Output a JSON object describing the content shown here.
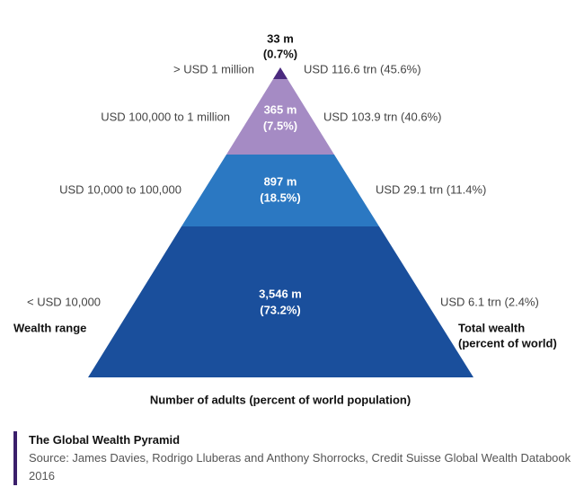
{
  "levels": [
    {
      "adults": "33 m",
      "share": "(0.7%)",
      "range": "> USD 1 million",
      "wealth": "USD 116.6 trn (45.6%)"
    },
    {
      "adults": "365 m",
      "share": "(7.5%)",
      "range": "USD 100,000  to 1 million",
      "wealth": "USD 103.9 trn (40.6%)"
    },
    {
      "adults": "897 m",
      "share": "(18.5%)",
      "range": "USD 10,000  to 100,000",
      "wealth": "USD 29.1 trn (11.4%)"
    },
    {
      "adults": "3,546 m",
      "share": "(73.2%)",
      "range": "<  USD 10,000",
      "wealth": "USD 6.1 trn (2.4%)"
    }
  ],
  "labels": {
    "left": "Wealth range",
    "right": [
      "Total wealth",
      "(percent of world)"
    ],
    "bottom": "Number of adults (percent of world population)"
  },
  "footer": {
    "title": "The Global Wealth Pyramid",
    "source": "Source: James Davies, Rodrigo Lluberas and Anthony Shorrocks, Credit Suisse Global Wealth Databook 2016"
  }
}
